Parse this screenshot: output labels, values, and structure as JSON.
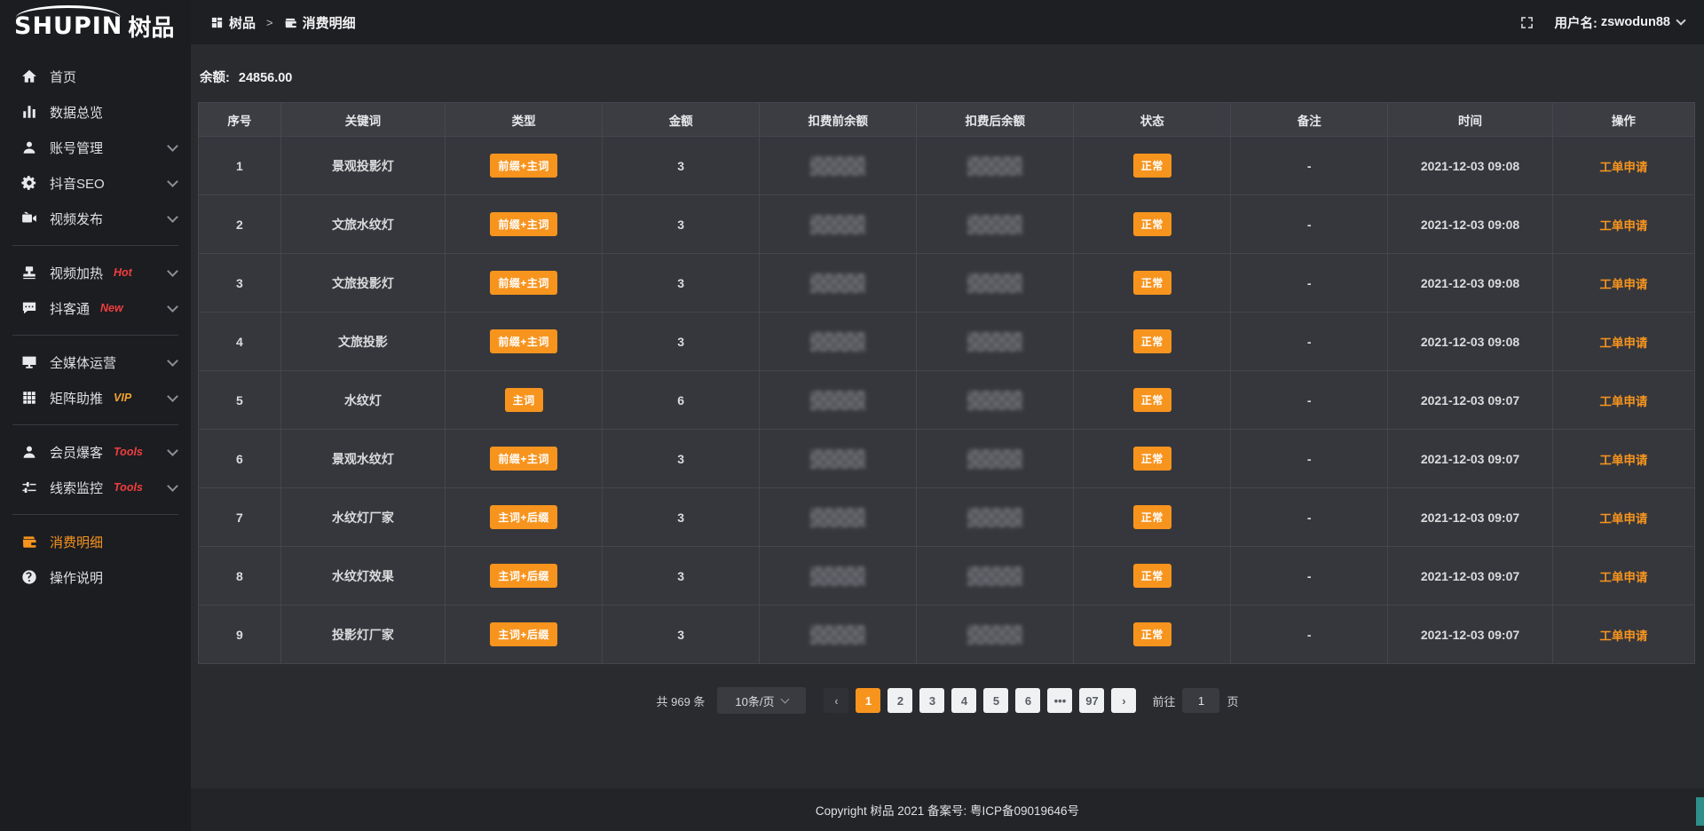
{
  "colors": {
    "accent": "#f7941e",
    "hot": "#f03e3e",
    "vip": "#f0a32f",
    "teal": "#2e8f8a"
  },
  "app": {
    "logo_en": "SHUPIN",
    "logo_cn": "树品"
  },
  "header": {
    "breadcrumb": [
      {
        "icon": "dashboard-icon",
        "label": "树品"
      },
      {
        "icon": "wallet-icon",
        "label": "消费明细"
      }
    ],
    "breadcrumb_separator": ">",
    "fullscreen_icon": "fullscreen-icon",
    "username_label": "用户名:",
    "username": "zswodun88"
  },
  "sidebar": {
    "items": [
      {
        "id": "home",
        "icon": "home-icon",
        "label": "首页"
      },
      {
        "id": "data-overview",
        "icon": "chart-icon",
        "label": "数据总览"
      },
      {
        "id": "account-manage",
        "icon": "user-icon",
        "label": "账号管理",
        "chevron": true
      },
      {
        "id": "douyin-seo",
        "icon": "gear-icon",
        "label": "抖音SEO",
        "chevron": true
      },
      {
        "id": "video-publish",
        "icon": "video-icon",
        "label": "视频发布",
        "chevron": true,
        "divider_after": true
      },
      {
        "id": "video-heat",
        "icon": "stamp-icon",
        "label": "视频加热",
        "tag": "Hot",
        "tag_color": "#f03e3e",
        "chevron": true
      },
      {
        "id": "douketong",
        "icon": "chat-icon",
        "label": "抖客通",
        "tag": "New",
        "tag_color": "#f03e3e",
        "chevron": true,
        "divider_after": true
      },
      {
        "id": "media-operation",
        "icon": "monitor-icon",
        "label": "全媒体运营",
        "chevron": true
      },
      {
        "id": "matrix-boost",
        "icon": "grid-icon",
        "label": "矩阵助推",
        "tag": "VIP",
        "tag_color": "#f0a32f",
        "chevron": true,
        "divider_after": true
      },
      {
        "id": "member-baoke",
        "icon": "user-icon",
        "label": "会员爆客",
        "tag": "Tools",
        "tag_color": "#f03e3e",
        "chevron": true
      },
      {
        "id": "clue-monitor",
        "icon": "sliders-icon",
        "label": "线索监控",
        "tag": "Tools",
        "tag_color": "#f03e3e",
        "chevron": true,
        "divider_after": true
      },
      {
        "id": "consume-detail",
        "icon": "wallet-icon",
        "label": "消费明细",
        "active": true
      },
      {
        "id": "operation-guide",
        "icon": "question-icon",
        "label": "操作说明"
      }
    ]
  },
  "balance": {
    "label": "余额:",
    "value": "24856.00"
  },
  "table": {
    "columns": [
      {
        "key": "index",
        "label": "序号",
        "width": "5.5%"
      },
      {
        "key": "keyword",
        "label": "关键词",
        "width": "11%"
      },
      {
        "key": "type",
        "label": "类型",
        "width": "10.5%"
      },
      {
        "key": "amount",
        "label": "金额",
        "width": "10.5%"
      },
      {
        "key": "pre_balance",
        "label": "扣费前余额",
        "width": "10.5%",
        "redacted": true
      },
      {
        "key": "post_balance",
        "label": "扣费后余额",
        "width": "10.5%",
        "redacted": true
      },
      {
        "key": "status",
        "label": "状态",
        "width": "10.5%"
      },
      {
        "key": "remark",
        "label": "备注",
        "width": "10.5%"
      },
      {
        "key": "time",
        "label": "时间",
        "width": "11%"
      },
      {
        "key": "action",
        "label": "操作",
        "width": "9.5%"
      }
    ],
    "rows": [
      {
        "index": "1",
        "keyword": "景观投影灯",
        "type": "前缀+主词",
        "amount": "3",
        "status": "正常",
        "remark": "-",
        "time": "2021-12-03 09:08",
        "action": "工单申请"
      },
      {
        "index": "2",
        "keyword": "文旅水纹灯",
        "type": "前缀+主词",
        "amount": "3",
        "status": "正常",
        "remark": "-",
        "time": "2021-12-03 09:08",
        "action": "工单申请"
      },
      {
        "index": "3",
        "keyword": "文旅投影灯",
        "type": "前缀+主词",
        "amount": "3",
        "status": "正常",
        "remark": "-",
        "time": "2021-12-03 09:08",
        "action": "工单申请"
      },
      {
        "index": "4",
        "keyword": "文旅投影",
        "type": "前缀+主词",
        "amount": "3",
        "status": "正常",
        "remark": "-",
        "time": "2021-12-03 09:08",
        "action": "工单申请"
      },
      {
        "index": "5",
        "keyword": "水纹灯",
        "type": "主词",
        "amount": "6",
        "status": "正常",
        "remark": "-",
        "time": "2021-12-03 09:07",
        "action": "工单申请"
      },
      {
        "index": "6",
        "keyword": "景观水纹灯",
        "type": "前缀+主词",
        "amount": "3",
        "status": "正常",
        "remark": "-",
        "time": "2021-12-03 09:07",
        "action": "工单申请"
      },
      {
        "index": "7",
        "keyword": "水纹灯厂家",
        "type": "主词+后缀",
        "amount": "3",
        "status": "正常",
        "remark": "-",
        "time": "2021-12-03 09:07",
        "action": "工单申请"
      },
      {
        "index": "8",
        "keyword": "水纹灯效果",
        "type": "主词+后缀",
        "amount": "3",
        "status": "正常",
        "remark": "-",
        "time": "2021-12-03 09:07",
        "action": "工单申请"
      },
      {
        "index": "9",
        "keyword": "投影灯厂家",
        "type": "主词+后缀",
        "amount": "3",
        "status": "正常",
        "remark": "-",
        "time": "2021-12-03 09:07",
        "action": "工单申请"
      }
    ]
  },
  "pagination": {
    "total": "共 969 条",
    "page_size": "10条/页",
    "prev": "‹",
    "next": "›",
    "pages": [
      "1",
      "2",
      "3",
      "4",
      "5",
      "6",
      "•••",
      "97"
    ],
    "active_page": "1",
    "goto_label": "前往",
    "goto_value": "1",
    "goto_suffix": "页"
  },
  "footer": {
    "copyright": "Copyright 树品 2021 备案号: 粤ICP备09019646号"
  }
}
